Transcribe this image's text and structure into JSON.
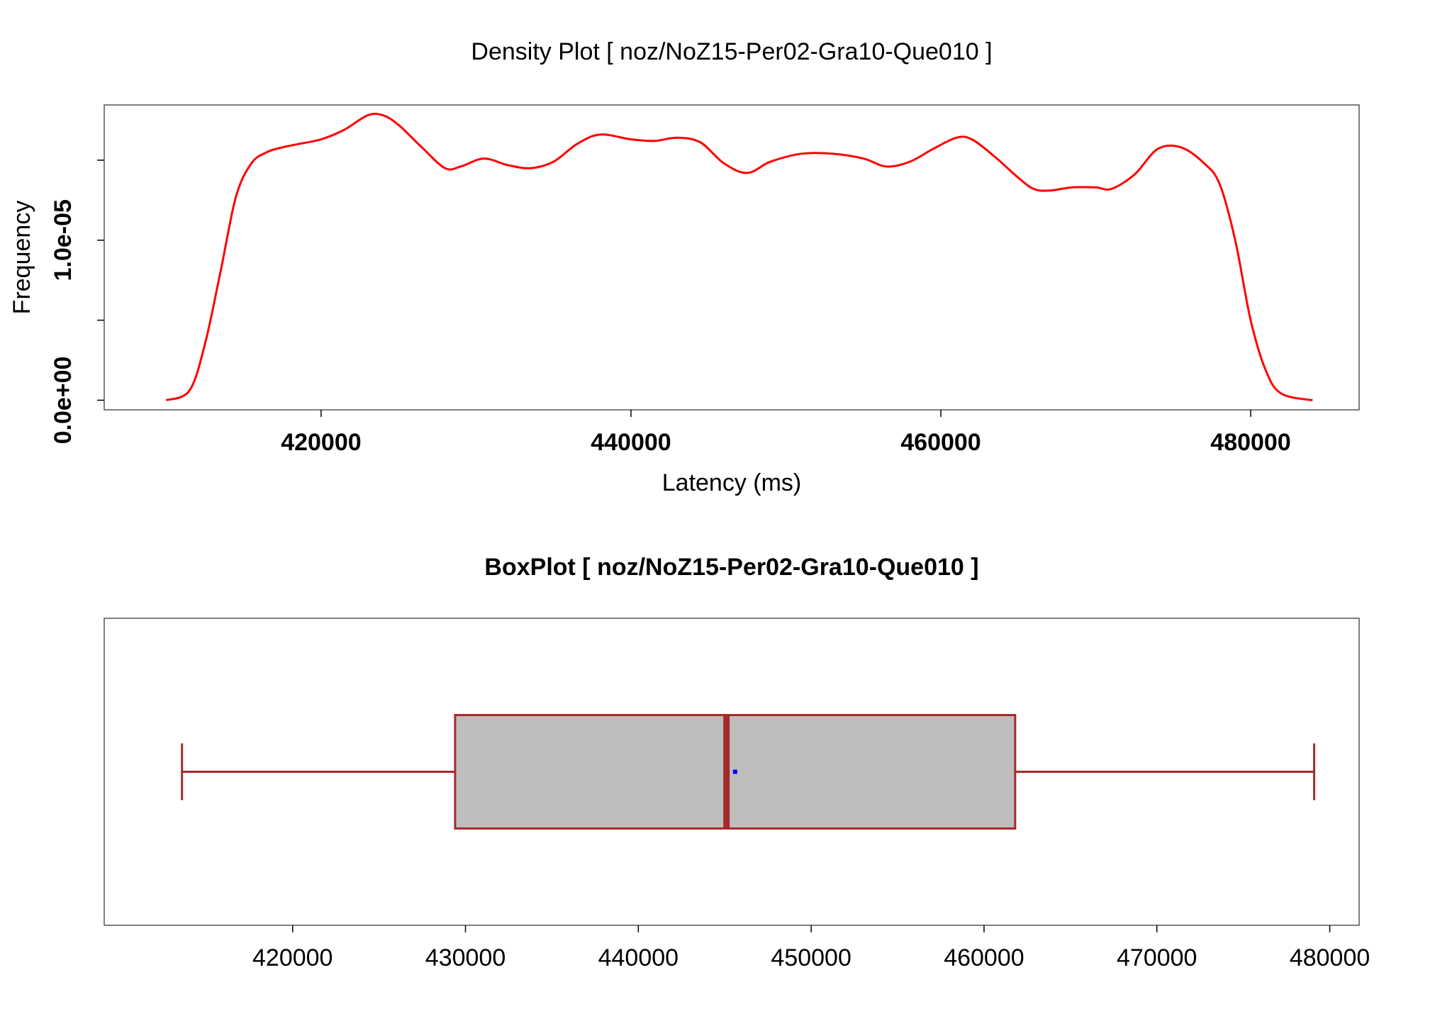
{
  "chart_data": [
    {
      "type": "line",
      "title": "Density Plot [ noz/NoZ15-Per02-Gra10-Que010 ]",
      "xlabel": "Latency (ms)",
      "ylabel": "Frequency",
      "xlim": [
        406000,
        487000
      ],
      "ylim": [
        -6e-07,
        1.845e-05
      ],
      "x_ticks": [
        420000,
        440000,
        460000,
        480000
      ],
      "x_tick_labels": [
        "420000",
        "440000",
        "460000",
        "480000"
      ],
      "y_ticks": [
        0,
        5e-06,
        1e-05,
        1.5e-05
      ],
      "y_tick_labels": [
        "0.0e+00",
        "",
        "1.0e-05",
        ""
      ],
      "grid": false,
      "line_color": "#ff0000",
      "series": [
        {
          "x": [
            410000,
            411500,
            412500,
            413500,
            414500,
            415500,
            416500,
            417500,
            418500,
            420000,
            421500,
            423000,
            424000,
            425000,
            426500,
            428000,
            429000,
            430500,
            432000,
            433500,
            435000,
            436500,
            438000,
            440000,
            441500,
            443000,
            444500,
            446000,
            447500,
            449000,
            451000,
            453000,
            455000,
            456500,
            458000,
            459500,
            461000,
            462000,
            463500,
            465000,
            466000,
            467000,
            468500,
            470000,
            471000,
            472500,
            474000,
            475500,
            477000,
            478000,
            479000,
            480000,
            481000,
            482000,
            484000
          ],
          "y": [
            0,
            6e-07,
            3.5e-06,
            8e-06,
            1.27e-05,
            1.48e-05,
            1.55e-05,
            1.58e-05,
            1.6e-05,
            1.63e-05,
            1.69e-05,
            1.78e-05,
            1.78e-05,
            1.72e-05,
            1.58e-05,
            1.45e-05,
            1.46e-05,
            1.51e-05,
            1.47e-05,
            1.45e-05,
            1.49e-05,
            1.6e-05,
            1.66e-05,
            1.63e-05,
            1.62e-05,
            1.64e-05,
            1.61e-05,
            1.48e-05,
            1.42e-05,
            1.49e-05,
            1.54e-05,
            1.54e-05,
            1.51e-05,
            1.46e-05,
            1.49e-05,
            1.57e-05,
            1.64e-05,
            1.63e-05,
            1.52e-05,
            1.39e-05,
            1.32e-05,
            1.31e-05,
            1.33e-05,
            1.33e-05,
            1.32e-05,
            1.41e-05,
            1.57e-05,
            1.58e-05,
            1.48e-05,
            1.35e-05,
            1e-05,
            5e-06,
            1.8e-06,
            4e-07,
            0
          ]
        }
      ]
    },
    {
      "type": "box",
      "title": "BoxPlot [ noz/NoZ15-Per02-Gra10-Que010 ]",
      "orientation": "horizontal",
      "xlim": [
        409100,
        481700
      ],
      "x_ticks": [
        420000,
        430000,
        440000,
        450000,
        460000,
        470000,
        480000
      ],
      "x_tick_labels": [
        "420000",
        "430000",
        "440000",
        "450000",
        "460000",
        "470000",
        "480000"
      ],
      "min": 413600,
      "q1": 429400,
      "median": 445100,
      "q3": 461800,
      "max": 479100,
      "mean": 445600,
      "box_fill": "#bebebe",
      "border_color": "#a52a2a",
      "mean_color": "#0000ff",
      "grid": false
    }
  ]
}
